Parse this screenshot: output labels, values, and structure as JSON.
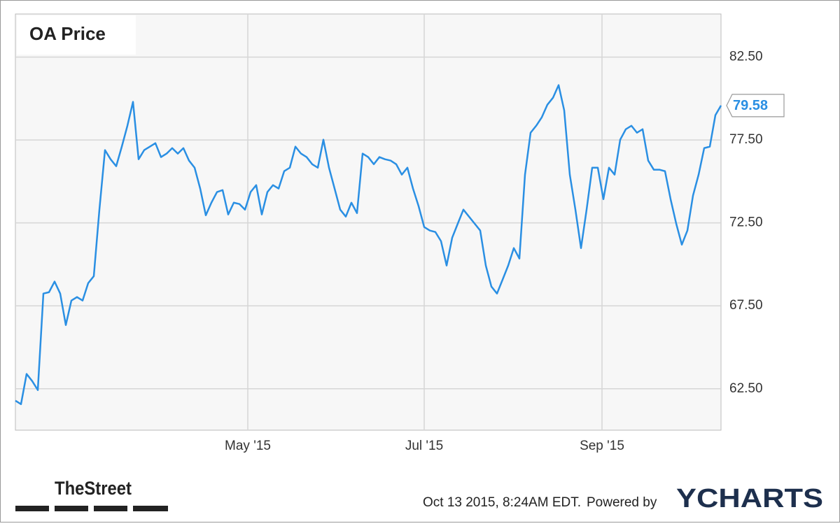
{
  "chart_data": {
    "type": "line",
    "title": "OA Price",
    "color": "#2a8fe3",
    "grid": true,
    "categories": [
      null,
      null,
      null,
      null,
      null,
      null,
      null,
      null,
      null,
      null,
      null,
      null,
      null,
      null,
      null,
      null,
      null,
      null,
      null,
      null,
      null,
      null,
      null,
      null,
      null,
      null,
      null,
      null,
      null,
      null,
      null,
      null,
      null,
      null,
      null,
      null,
      null,
      null,
      null,
      null,
      null,
      null,
      null,
      null,
      null,
      null,
      null,
      null,
      null,
      null,
      null,
      null,
      null,
      null,
      null,
      null,
      null,
      null,
      null,
      null,
      null,
      null,
      null,
      null,
      null,
      null,
      null,
      null,
      null,
      null,
      null,
      null,
      null,
      null,
      null,
      null,
      null,
      null,
      null,
      null,
      null,
      null,
      null,
      null,
      null,
      null,
      null,
      null,
      null,
      null,
      null,
      null,
      null,
      null,
      null,
      null,
      null,
      null,
      null,
      null,
      null,
      null,
      null,
      null,
      null,
      null,
      null,
      null,
      null,
      null,
      null,
      null,
      null,
      null,
      null,
      null,
      null,
      null,
      null,
      null,
      null,
      null,
      null,
      null,
      null,
      null,
      null
    ],
    "series": [
      {
        "name": "OA Price",
        "color": "#2a8fe3",
        "values": [
          61.78,
          61.57,
          63.39,
          62.96,
          62.42,
          68.24,
          68.32,
          68.96,
          68.24,
          66.34,
          67.82,
          68.03,
          67.82,
          68.87,
          69.29,
          73.3,
          76.89,
          76.34,
          75.92,
          77.1,
          78.36,
          79.8,
          76.34,
          76.89,
          77.1,
          77.31,
          76.47,
          76.68,
          77.01,
          76.68,
          77.01,
          76.26,
          75.83,
          74.57,
          72.96,
          73.72,
          74.36,
          74.48,
          73.01,
          73.72,
          73.64,
          73.3,
          74.36,
          74.78,
          73.01,
          74.36,
          74.78,
          74.57,
          75.62,
          75.83,
          77.1,
          76.68,
          76.47,
          76.04,
          75.83,
          77.52,
          75.83,
          74.57,
          73.3,
          72.88,
          73.72,
          73.09,
          76.68,
          76.47,
          76.04,
          76.47,
          76.34,
          76.26,
          76.04,
          75.41,
          75.83,
          74.57,
          73.51,
          72.25,
          72.04,
          71.95,
          71.4,
          69.93,
          71.61,
          72.46,
          73.3,
          72.88,
          72.46,
          72.04,
          69.93,
          68.66,
          68.24,
          69.08,
          69.93,
          70.98,
          70.35,
          75.41,
          77.94,
          78.36,
          78.87,
          79.63,
          80.05,
          80.81,
          79.29,
          75.41,
          73.3,
          70.98,
          73.3,
          75.83,
          75.83,
          73.93,
          75.83,
          75.41,
          77.52,
          78.15,
          78.36,
          77.94,
          78.15,
          76.26,
          75.71,
          75.71,
          75.62,
          73.93,
          72.46,
          71.19,
          72.04,
          74.15,
          75.41,
          77.01,
          77.1,
          79.0,
          79.58
        ]
      }
    ],
    "xticks": [
      {
        "value": 41.5,
        "label": "May '15"
      },
      {
        "value": 73,
        "label": "Jul '15"
      },
      {
        "value": 104.75,
        "label": "Sep '15"
      }
    ],
    "ylim": [
      60.0,
      85.1
    ],
    "yticks": [
      {
        "value": 62.5,
        "label": "62.50"
      },
      {
        "value": 67.5,
        "label": "67.50"
      },
      {
        "value": 72.5,
        "label": "72.50"
      },
      {
        "value": 77.5,
        "label": "77.50"
      },
      {
        "value": 82.5,
        "label": "82.50"
      }
    ]
  },
  "footer": {
    "logo": "TheStreet",
    "timestamp": "Oct 13 2015, 8:24AM EDT.",
    "powered_by": "Powered by",
    "brand": "YCHARTS"
  }
}
